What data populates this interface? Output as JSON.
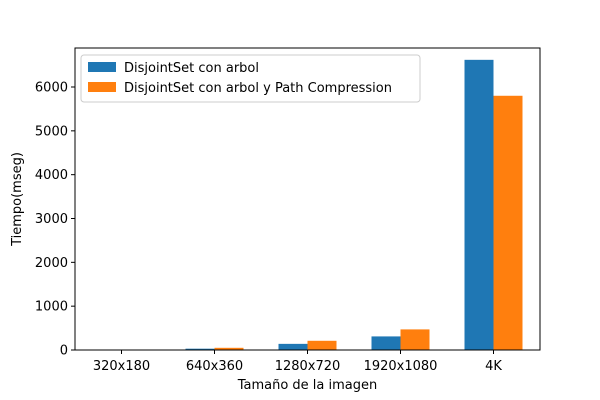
{
  "chart_data": {
    "type": "bar",
    "title": "",
    "xlabel": "Tamaño de la imagen",
    "ylabel": "Tiempo(mseg)",
    "categories": [
      "320x180",
      "640x360",
      "1280x720",
      "1920x1080",
      "4K"
    ],
    "series": [
      {
        "name": "DisjointSet con arbol",
        "color": "#1f77b4",
        "values": [
          10,
          30,
          140,
          310,
          6620
        ]
      },
      {
        "name": "DisjointSet con arbol y Path Compression",
        "color": "#ff7f0e",
        "values": [
          10,
          50,
          210,
          470,
          5800
        ]
      }
    ],
    "ylim": [
      0,
      6890
    ],
    "yticks": [
      0,
      1000,
      2000,
      3000,
      4000,
      5000,
      6000
    ],
    "legend_position": "top-left",
    "grid": false
  }
}
